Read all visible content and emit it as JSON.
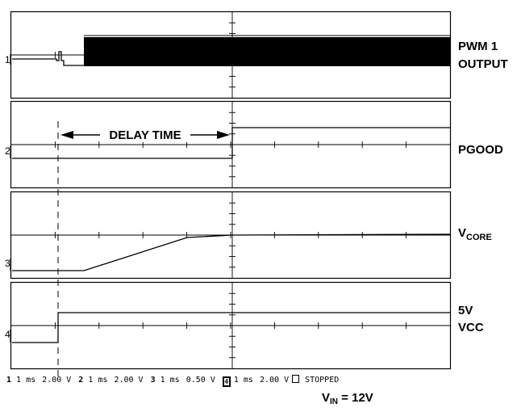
{
  "channels": [
    {
      "number": "1",
      "label": "PWM 1",
      "label2": "OUTPUT"
    },
    {
      "number": "2",
      "label": "PGOOD"
    },
    {
      "number": "3",
      "label_main": "V",
      "label_sub": "CORE"
    },
    {
      "number": "4",
      "label": "5V",
      "label2": "VCC"
    }
  ],
  "annotation": {
    "text": "DELAY TIME"
  },
  "footer": {
    "ch1": {
      "num": "1",
      "time": "1 ms",
      "volts": "2.00 V"
    },
    "ch2": {
      "num": "2",
      "time": "1 ms",
      "volts": "2.00 V"
    },
    "ch3": {
      "num": "3",
      "time": "1 ms",
      "volts": "0.50 V"
    },
    "ch4": {
      "num": "4",
      "time": "1 ms",
      "volts": "2.00 V"
    },
    "status": "STOPPED"
  },
  "condition": {
    "main": "V",
    "sub": "IN",
    "rest": " = 12V"
  }
}
